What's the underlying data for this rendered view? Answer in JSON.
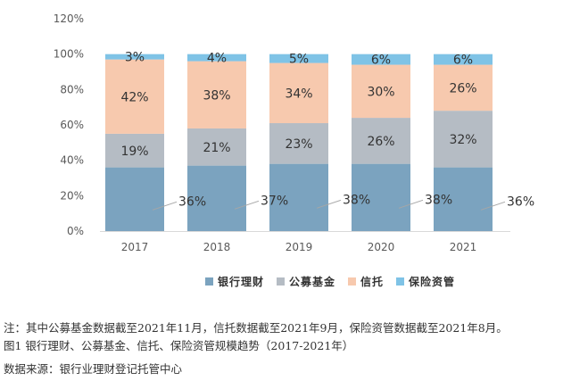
{
  "chart_data": {
    "type": "bar",
    "stacked": true,
    "categories": [
      "2017",
      "2018",
      "2019",
      "2020",
      "2021"
    ],
    "ylim": [
      0,
      120
    ],
    "yticks": [
      "0%",
      "20%",
      "40%",
      "60%",
      "80%",
      "100%",
      "120%"
    ],
    "series": [
      {
        "name": "银行理财",
        "color": "#7ba3bf",
        "values": [
          36,
          37,
          38,
          38,
          36
        ],
        "labels": [
          "36%",
          "37%",
          "38%",
          "38%",
          "36%"
        ]
      },
      {
        "name": "公募基金",
        "color": "#b5bcc4",
        "values": [
          19,
          21,
          23,
          26,
          32
        ],
        "labels": [
          "19%",
          "21%",
          "23%",
          "26%",
          "32%"
        ]
      },
      {
        "name": "信托",
        "color": "#f7c9ae",
        "values": [
          42,
          38,
          34,
          30,
          26
        ],
        "labels": [
          "42%",
          "38%",
          "34%",
          "30%",
          "26%"
        ]
      },
      {
        "name": "保险资管",
        "color": "#7fc3e6",
        "values": [
          3,
          4,
          5,
          6,
          6
        ],
        "labels": [
          "3%",
          "4%",
          "5%",
          "6%",
          "6%"
        ]
      }
    ],
    "legend_position": "bottom"
  },
  "notes": {
    "line1": "注：其中公募基金数据截至2021年11月，信托数据截至2021年9月，保险资管数据截至2021年8月。",
    "line2": "图1  银行理财、公募基金、信托、保险资管规模趋势（2017-2021年）",
    "source": "数据来源：银行业理财登记托管中心"
  }
}
